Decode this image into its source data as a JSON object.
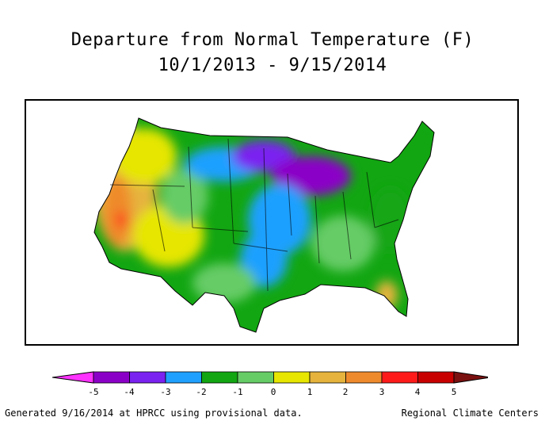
{
  "title": {
    "line1": "Departure from Normal Temperature (F)",
    "line2": "10/1/2013 - 9/15/2014"
  },
  "legend": {
    "ticks": [
      "-5",
      "-4",
      "-3",
      "-2",
      "-1",
      "0",
      "1",
      "2",
      "3",
      "4",
      "5"
    ],
    "colors": [
      "#8b00c7",
      "#7a22f0",
      "#1fa0ff",
      "#12a612",
      "#66cc66",
      "#e6e600",
      "#e6b43c",
      "#ef8a2c",
      "#ff1a1a",
      "#c80000"
    ],
    "low_arrow_color": "#ff33ff",
    "high_arrow_color": "#7a1010"
  },
  "footer": {
    "left": "Generated 9/16/2014 at HPRCC using provisional data.",
    "right": "Regional Climate Centers"
  }
}
